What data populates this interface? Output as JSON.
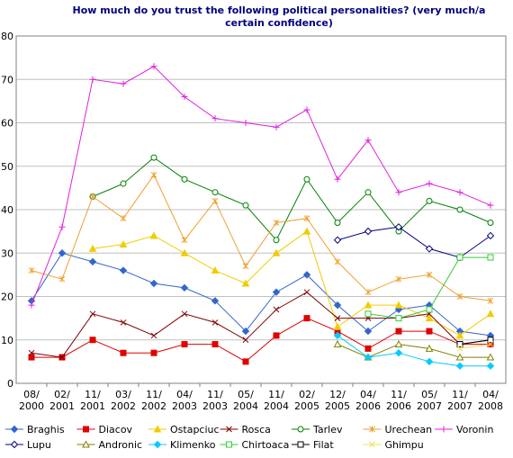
{
  "chart_data": {
    "type": "line",
    "title": "How much do you trust the following political personalities? (very much/a certain confidence)",
    "categories": [
      "08/\n2000",
      "02/\n2001",
      "11/\n2001",
      "03/\n2002",
      "11/\n2002",
      "04/\n2003",
      "11/\n2003",
      "05/\n2004",
      "11/\n2004",
      "02/\n2005",
      "12/\n2005",
      "04/\n2006",
      "11/\n2006",
      "05/\n2007",
      "11/\n2007",
      "04/\n2008"
    ],
    "ylim": [
      0,
      80
    ],
    "yticks": [
      0,
      10,
      20,
      30,
      40,
      50,
      60,
      70,
      80
    ],
    "grid": true,
    "legend": "bottom",
    "series": [
      {
        "name": "Braghis",
        "color": "#3366cc",
        "marker": "diamond",
        "values": [
          19,
          30,
          28,
          26,
          23,
          22,
          19,
          12,
          21,
          25,
          18,
          12,
          17,
          18,
          12,
          11
        ]
      },
      {
        "name": "Diacov",
        "color": "#e00000",
        "marker": "square",
        "values": [
          6,
          6,
          10,
          7,
          7,
          9,
          9,
          5,
          11,
          15,
          12,
          8,
          12,
          12,
          9,
          9
        ]
      },
      {
        "name": "Ostapciuc",
        "color": "#f0cc00",
        "marker": "triangle",
        "values": [
          null,
          null,
          31,
          32,
          34,
          30,
          26,
          23,
          30,
          35,
          13,
          18,
          18,
          15,
          11,
          16
        ]
      },
      {
        "name": "Rosca",
        "color": "#800000",
        "marker": "x",
        "values": [
          7,
          6,
          16,
          14,
          11,
          16,
          14,
          10,
          17,
          21,
          15,
          15,
          15,
          16,
          9,
          10
        ]
      },
      {
        "name": "Tarlev",
        "color": "#008000",
        "marker": "circle",
        "values": [
          null,
          null,
          43,
          46,
          52,
          47,
          44,
          41,
          33,
          47,
          37,
          44,
          35,
          42,
          40,
          37
        ]
      },
      {
        "name": "Urechean",
        "color": "#f0a030",
        "marker": "star",
        "values": [
          26,
          24,
          43,
          38,
          48,
          33,
          42,
          27,
          37,
          38,
          28,
          21,
          24,
          25,
          20,
          19
        ]
      },
      {
        "name": "Voronin",
        "color": "#e020e0",
        "marker": "plus",
        "values": [
          18,
          36,
          70,
          69,
          73,
          66,
          61,
          60,
          59,
          63,
          47,
          56,
          44,
          46,
          44,
          41
        ]
      },
      {
        "name": "Lupu",
        "color": "#000080",
        "marker": "diamond-open",
        "values": [
          null,
          null,
          null,
          null,
          null,
          null,
          null,
          null,
          null,
          null,
          33,
          35,
          36,
          31,
          29,
          34
        ]
      },
      {
        "name": "Andronic",
        "color": "#808000",
        "marker": "triangle-open",
        "values": [
          null,
          null,
          null,
          null,
          null,
          null,
          null,
          null,
          null,
          null,
          9,
          6,
          9,
          8,
          6,
          6
        ]
      },
      {
        "name": "Klimenko",
        "color": "#00ccff",
        "marker": "diamond",
        "values": [
          null,
          null,
          null,
          null,
          null,
          null,
          null,
          null,
          null,
          null,
          11,
          6,
          7,
          5,
          4,
          4
        ]
      },
      {
        "name": "Chirtoaca",
        "color": "#33cc33",
        "marker": "square-open",
        "values": [
          null,
          null,
          null,
          null,
          null,
          null,
          null,
          null,
          null,
          null,
          null,
          16,
          15,
          17,
          29,
          29
        ]
      },
      {
        "name": "Filat",
        "color": "#000000",
        "marker": "square-open",
        "values": [
          null,
          null,
          null,
          null,
          null,
          null,
          null,
          null,
          null,
          null,
          null,
          null,
          null,
          null,
          9,
          10
        ]
      },
      {
        "name": "Ghimpu",
        "color": "#f0e060",
        "marker": "x",
        "values": [
          null,
          null,
          null,
          null,
          null,
          null,
          null,
          null,
          null,
          null,
          null,
          null,
          null,
          null,
          8,
          9
        ]
      }
    ]
  }
}
